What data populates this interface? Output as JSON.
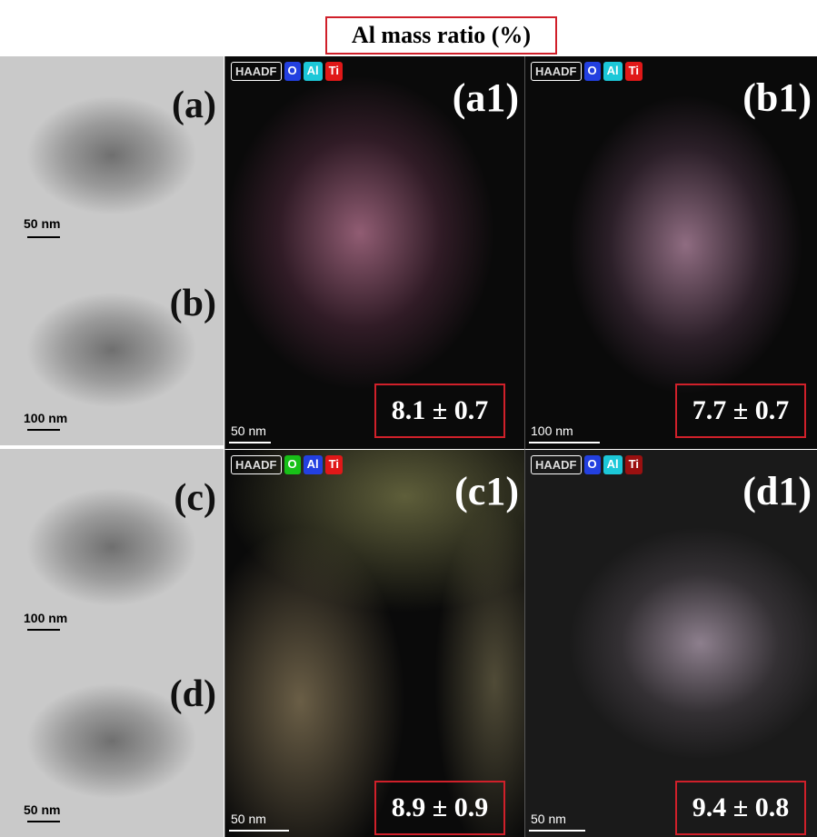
{
  "title": "Al mass ratio (%)",
  "tem_panels": [
    {
      "label": "(a)",
      "scale_bar": "50 nm"
    },
    {
      "label": "(b)",
      "scale_bar": "100 nm"
    },
    {
      "label": "(c)",
      "scale_bar": "100 nm"
    },
    {
      "label": "(d)",
      "scale_bar": "50 nm"
    }
  ],
  "eds_panels": [
    {
      "label": "(a1)",
      "legend": [
        "HAADF",
        "O",
        "Al",
        "Ti"
      ],
      "scale_bar": "50 nm",
      "al_ratio": "8.1 ± 0.7"
    },
    {
      "label": "(b1)",
      "legend": [
        "HAADF",
        "O",
        "Al",
        "Ti"
      ],
      "scale_bar": "100 nm",
      "al_ratio": "7.7 ± 0.7"
    },
    {
      "label": "(c1)",
      "legend": [
        "HAADF",
        "O",
        "Al",
        "Ti"
      ],
      "scale_bar": "50 nm",
      "al_ratio": "8.9 ± 0.9"
    },
    {
      "label": "(d1)",
      "legend": [
        "HAADF",
        "O",
        "Al",
        "Ti"
      ],
      "scale_bar": "50 nm",
      "al_ratio": "9.4 ± 0.8"
    }
  ]
}
